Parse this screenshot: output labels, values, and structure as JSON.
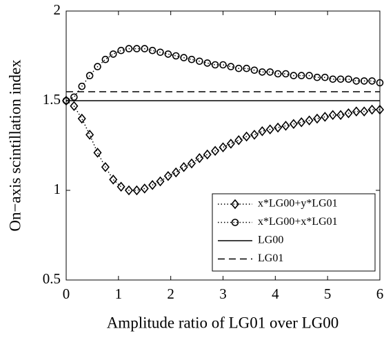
{
  "chart_data": {
    "type": "line",
    "xlabel": "Amplitude ratio of LG01 over LG00",
    "ylabel": "On−axis scintillation index",
    "xlim": [
      0,
      6
    ],
    "ylim": [
      0.5,
      2
    ],
    "xticks": [
      0,
      1,
      2,
      3,
      4,
      5,
      6
    ],
    "yticks": [
      0.5,
      1,
      1.5,
      2
    ],
    "legend": "lower right",
    "x": [
      0,
      0.15,
      0.3,
      0.45,
      0.6,
      0.75,
      0.9,
      1.05,
      1.2,
      1.35,
      1.5,
      1.65,
      1.8,
      1.95,
      2.1,
      2.25,
      2.4,
      2.55,
      2.7,
      2.85,
      3.0,
      3.15,
      3.3,
      3.45,
      3.6,
      3.75,
      3.9,
      4.05,
      4.2,
      4.35,
      4.5,
      4.65,
      4.8,
      4.95,
      5.1,
      5.25,
      5.4,
      5.55,
      5.7,
      5.85,
      6.0
    ],
    "series": [
      {
        "name": "x*LG00+y*LG01",
        "color": "#000000",
        "marker": "diamond",
        "linestyle": "dotted",
        "values": [
          1.5,
          1.47,
          1.4,
          1.31,
          1.21,
          1.13,
          1.06,
          1.02,
          1.0,
          1.0,
          1.01,
          1.03,
          1.05,
          1.08,
          1.1,
          1.13,
          1.15,
          1.18,
          1.2,
          1.22,
          1.24,
          1.26,
          1.28,
          1.3,
          1.31,
          1.33,
          1.34,
          1.35,
          1.36,
          1.37,
          1.38,
          1.39,
          1.4,
          1.41,
          1.42,
          1.42,
          1.43,
          1.44,
          1.44,
          1.45,
          1.45
        ]
      },
      {
        "name": "x*LG00+x*LG01",
        "color": "#000000",
        "marker": "circle",
        "linestyle": "dotted",
        "values": [
          1.5,
          1.52,
          1.58,
          1.64,
          1.69,
          1.73,
          1.76,
          1.78,
          1.79,
          1.79,
          1.79,
          1.78,
          1.77,
          1.76,
          1.75,
          1.74,
          1.73,
          1.72,
          1.71,
          1.7,
          1.7,
          1.69,
          1.68,
          1.68,
          1.67,
          1.66,
          1.66,
          1.65,
          1.65,
          1.64,
          1.64,
          1.64,
          1.63,
          1.63,
          1.62,
          1.62,
          1.62,
          1.61,
          1.61,
          1.61,
          1.6
        ]
      },
      {
        "name": "LG00",
        "color": "#000000",
        "marker": "none",
        "linestyle": "solid",
        "x": [
          0,
          6
        ],
        "values": [
          1.5,
          1.5
        ]
      },
      {
        "name": "LG01",
        "color": "#000000",
        "marker": "none",
        "linestyle": "dashed",
        "x": [
          0,
          6
        ],
        "values": [
          1.55,
          1.55
        ]
      }
    ]
  }
}
